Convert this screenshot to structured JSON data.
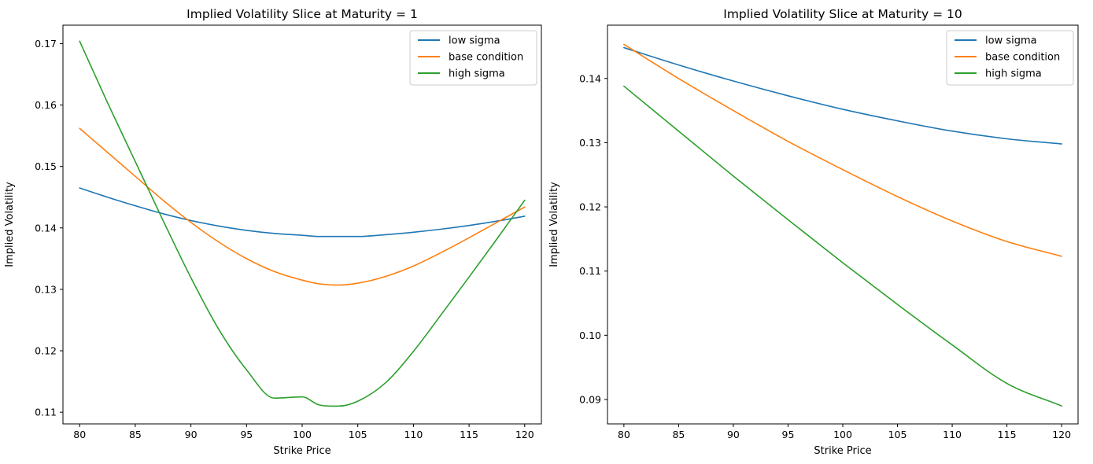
{
  "chart_data": [
    {
      "type": "line",
      "title": "Implied Volatility Slice at Maturity = 1",
      "xlabel": "Strike Price",
      "ylabel": "Implied Volatility",
      "xlim": [
        78.5,
        121.5
      ],
      "ylim": [
        0.1081,
        0.173
      ],
      "xticks": [
        80,
        85,
        90,
        95,
        100,
        105,
        110,
        115,
        120
      ],
      "xtick_labels": [
        "80",
        "85",
        "90",
        "95",
        "100",
        "105",
        "110",
        "115",
        "120"
      ],
      "yticks": [
        0.11,
        0.12,
        0.13,
        0.14,
        0.15,
        0.16,
        0.17
      ],
      "ytick_labels": [
        "0.11",
        "0.12",
        "0.13",
        "0.14",
        "0.15",
        "0.16",
        "0.17"
      ],
      "grid": false,
      "legend": "upper right",
      "x": [
        80,
        82.5,
        85,
        87.5,
        90,
        92.5,
        95,
        97.5,
        100,
        101.5,
        103.3,
        105,
        107.5,
        110,
        112.5,
        115,
        117.5,
        120
      ],
      "series": [
        {
          "name": "low sigma",
          "color": "#1f77b4",
          "values": [
            0.1465,
            0.145,
            0.1436,
            0.1423,
            0.1412,
            0.1403,
            0.1396,
            0.1391,
            0.1388,
            0.1386,
            0.1386,
            0.1386,
            0.1389,
            0.1393,
            0.1398,
            0.1404,
            0.1411,
            0.1419
          ]
        },
        {
          "name": "base condition",
          "color": "#ff7f0e",
          "values": [
            0.1562,
            0.1523,
            0.1484,
            0.1445,
            0.1409,
            0.1377,
            0.135,
            0.1329,
            0.1315,
            0.1309,
            0.1307,
            0.131,
            0.1321,
            0.1338,
            0.136,
            0.1384,
            0.1409,
            0.1434
          ]
        },
        {
          "name": "high sigma",
          "color": "#2ca02c",
          "values": [
            0.1704,
            0.1604,
            0.1508,
            0.1412,
            0.1319,
            0.1235,
            0.1169,
            0.1123,
            0.1125,
            0.1112,
            0.111,
            0.1118,
            0.1148,
            0.1199,
            0.1259,
            0.132,
            0.1382,
            0.1445
          ]
        }
      ]
    },
    {
      "type": "line",
      "title": "Implied Volatility Slice at Maturity = 10",
      "xlabel": "Strike Price",
      "ylabel": "Implied Volatility",
      "xlim": [
        78.5,
        121.5
      ],
      "ylim": [
        0.0862,
        0.1483
      ],
      "xticks": [
        80,
        85,
        90,
        95,
        100,
        105,
        110,
        115,
        120
      ],
      "xtick_labels": [
        "80",
        "85",
        "90",
        "95",
        "100",
        "105",
        "110",
        "115",
        "120"
      ],
      "yticks": [
        0.09,
        0.1,
        0.11,
        0.12,
        0.13,
        0.14
      ],
      "ytick_labels": [
        "0.09",
        "0.10",
        "0.11",
        "0.12",
        "0.13",
        "0.14"
      ],
      "grid": false,
      "legend": "upper right",
      "x": [
        80,
        85,
        90,
        95,
        100,
        105,
        110,
        115,
        120
      ],
      "series": [
        {
          "name": "low sigma",
          "color": "#1f77b4",
          "values": [
            0.1448,
            0.1421,
            0.1396,
            0.1373,
            0.1352,
            0.1334,
            0.1318,
            0.1306,
            0.1298
          ]
        },
        {
          "name": "base condition",
          "color": "#ff7f0e",
          "values": [
            0.1453,
            0.14,
            0.135,
            0.1302,
            0.1258,
            0.1216,
            0.1178,
            0.1146,
            0.1123
          ]
        },
        {
          "name": "high sigma",
          "color": "#2ca02c",
          "values": [
            0.1388,
            0.1318,
            0.1248,
            0.118,
            0.1113,
            0.1048,
            0.0985,
            0.0925,
            0.089
          ]
        }
      ]
    }
  ]
}
